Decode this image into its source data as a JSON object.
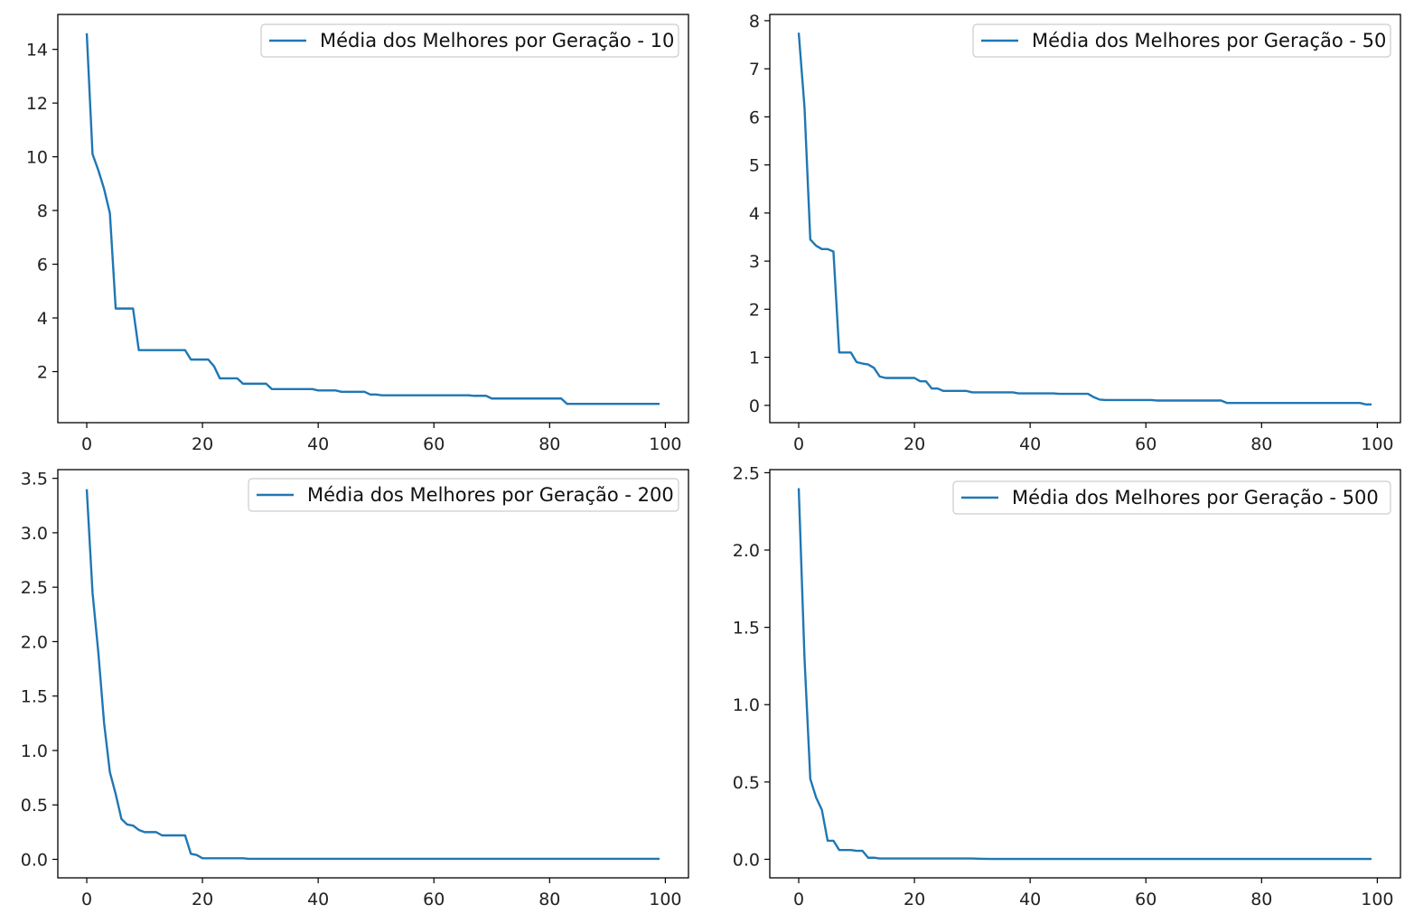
{
  "figure": {
    "line_color": "#1f77b4"
  },
  "chart_data": [
    {
      "type": "line",
      "title": "",
      "xlabel": "",
      "ylabel": "",
      "xlim": [
        -5,
        104
      ],
      "ylim": [
        0.1,
        15.3
      ],
      "xticks": [
        0,
        20,
        40,
        60,
        80,
        100
      ],
      "xtick_labels": [
        "0",
        "20",
        "40",
        "60",
        "80",
        "100"
      ],
      "yticks": [
        2,
        4,
        6,
        8,
        10,
        12,
        14
      ],
      "ytick_labels": [
        "2",
        "4",
        "6",
        "8",
        "10",
        "12",
        "14"
      ],
      "grid": false,
      "legend_position": "top-right",
      "series": [
        {
          "name": "Média dos Melhores por Geração - 10",
          "x": [
            0,
            1,
            2,
            3,
            4,
            5,
            6,
            7,
            8,
            9,
            10,
            11,
            12,
            13,
            14,
            15,
            16,
            17,
            18,
            19,
            20,
            21,
            22,
            23,
            24,
            25,
            26,
            27,
            28,
            29,
            30,
            31,
            32,
            33,
            34,
            35,
            36,
            37,
            38,
            39,
            40,
            41,
            42,
            43,
            44,
            45,
            46,
            47,
            48,
            49,
            50,
            51,
            52,
            53,
            54,
            55,
            56,
            57,
            58,
            59,
            60,
            61,
            62,
            63,
            64,
            65,
            66,
            67,
            68,
            69,
            70,
            71,
            72,
            73,
            74,
            75,
            76,
            77,
            78,
            79,
            80,
            81,
            82,
            83,
            84,
            85,
            86,
            87,
            88,
            89,
            90,
            91,
            92,
            93,
            94,
            95,
            96,
            97,
            98,
            99
          ],
          "y": [
            14.6,
            10.1,
            9.5,
            8.8,
            7.9,
            4.35,
            4.35,
            4.35,
            4.35,
            2.8,
            2.8,
            2.8,
            2.8,
            2.8,
            2.8,
            2.8,
            2.8,
            2.8,
            2.45,
            2.45,
            2.45,
            2.45,
            2.2,
            1.75,
            1.75,
            1.75,
            1.75,
            1.55,
            1.55,
            1.55,
            1.55,
            1.55,
            1.35,
            1.35,
            1.35,
            1.35,
            1.35,
            1.35,
            1.35,
            1.35,
            1.3,
            1.3,
            1.3,
            1.3,
            1.25,
            1.25,
            1.25,
            1.25,
            1.25,
            1.15,
            1.15,
            1.12,
            1.12,
            1.12,
            1.12,
            1.12,
            1.12,
            1.12,
            1.12,
            1.12,
            1.12,
            1.12,
            1.12,
            1.12,
            1.12,
            1.12,
            1.12,
            1.1,
            1.1,
            1.1,
            1.0,
            1.0,
            1.0,
            1.0,
            1.0,
            1.0,
            1.0,
            1.0,
            1.0,
            1.0,
            1.0,
            1.0,
            1.0,
            0.8,
            0.8,
            0.8,
            0.8,
            0.8,
            0.8,
            0.8,
            0.8,
            0.8,
            0.8,
            0.8,
            0.8,
            0.8,
            0.8,
            0.8,
            0.8,
            0.8
          ]
        }
      ]
    },
    {
      "type": "line",
      "title": "",
      "xlabel": "",
      "ylabel": "",
      "xlim": [
        -5,
        104
      ],
      "ylim": [
        -0.36,
        8.13
      ],
      "xticks": [
        0,
        20,
        40,
        60,
        80,
        100
      ],
      "xtick_labels": [
        "0",
        "20",
        "40",
        "60",
        "80",
        "100"
      ],
      "yticks": [
        0,
        1,
        2,
        3,
        4,
        5,
        6,
        7,
        8
      ],
      "ytick_labels": [
        "0",
        "1",
        "2",
        "3",
        "4",
        "5",
        "6",
        "7",
        "8"
      ],
      "grid": false,
      "legend_position": "top-right",
      "series": [
        {
          "name": "Média dos Melhores por Geração - 50",
          "x": [
            0,
            1,
            2,
            3,
            4,
            5,
            6,
            7,
            8,
            9,
            10,
            11,
            12,
            13,
            14,
            15,
            16,
            17,
            18,
            19,
            20,
            21,
            22,
            23,
            24,
            25,
            26,
            27,
            28,
            29,
            30,
            31,
            32,
            33,
            34,
            35,
            36,
            37,
            38,
            39,
            40,
            41,
            42,
            43,
            44,
            45,
            46,
            47,
            48,
            49,
            50,
            51,
            52,
            53,
            54,
            55,
            56,
            57,
            58,
            59,
            60,
            61,
            62,
            63,
            64,
            65,
            66,
            67,
            68,
            69,
            70,
            71,
            72,
            73,
            74,
            75,
            76,
            77,
            78,
            79,
            80,
            81,
            82,
            83,
            84,
            85,
            86,
            87,
            88,
            89,
            90,
            91,
            92,
            93,
            94,
            95,
            96,
            97,
            98,
            99
          ],
          "y": [
            7.75,
            6.2,
            3.45,
            3.32,
            3.25,
            3.25,
            3.2,
            1.1,
            1.1,
            1.1,
            0.9,
            0.87,
            0.85,
            0.78,
            0.6,
            0.57,
            0.57,
            0.57,
            0.57,
            0.57,
            0.57,
            0.5,
            0.5,
            0.35,
            0.35,
            0.3,
            0.3,
            0.3,
            0.3,
            0.3,
            0.27,
            0.27,
            0.27,
            0.27,
            0.27,
            0.27,
            0.27,
            0.27,
            0.25,
            0.25,
            0.25,
            0.25,
            0.25,
            0.25,
            0.25,
            0.24,
            0.24,
            0.24,
            0.24,
            0.24,
            0.24,
            0.17,
            0.12,
            0.11,
            0.11,
            0.11,
            0.11,
            0.11,
            0.11,
            0.11,
            0.11,
            0.11,
            0.1,
            0.1,
            0.1,
            0.1,
            0.1,
            0.1,
            0.1,
            0.1,
            0.1,
            0.1,
            0.1,
            0.1,
            0.05,
            0.05,
            0.05,
            0.05,
            0.05,
            0.05,
            0.05,
            0.05,
            0.05,
            0.05,
            0.05,
            0.05,
            0.05,
            0.05,
            0.05,
            0.05,
            0.05,
            0.05,
            0.05,
            0.05,
            0.05,
            0.05,
            0.05,
            0.05,
            0.02,
            0.02
          ]
        }
      ]
    },
    {
      "type": "line",
      "title": "",
      "xlabel": "",
      "ylabel": "",
      "xlim": [
        -5,
        104
      ],
      "ylim": [
        -0.17,
        3.58
      ],
      "xticks": [
        0,
        20,
        40,
        60,
        80,
        100
      ],
      "xtick_labels": [
        "0",
        "20",
        "40",
        "60",
        "80",
        "100"
      ],
      "yticks": [
        0,
        0.5,
        1,
        1.5,
        2,
        2.5,
        3,
        3.5
      ],
      "ytick_labels": [
        "0.0",
        "0.5",
        "1.0",
        "1.5",
        "2.0",
        "2.5",
        "3.0",
        "3.5"
      ],
      "grid": false,
      "legend_position": "top-right",
      "series": [
        {
          "name": "Média dos Melhores por Geração - 200",
          "x": [
            0,
            1,
            2,
            3,
            4,
            5,
            6,
            7,
            8,
            9,
            10,
            11,
            12,
            13,
            14,
            15,
            16,
            17,
            18,
            19,
            20,
            21,
            22,
            23,
            24,
            25,
            26,
            27,
            28,
            29,
            30,
            31,
            32,
            33,
            34,
            35,
            36,
            37,
            38,
            39,
            40,
            41,
            42,
            43,
            44,
            45,
            46,
            47,
            48,
            49,
            50,
            51,
            52,
            53,
            54,
            55,
            56,
            57,
            58,
            59,
            60,
            61,
            62,
            63,
            64,
            65,
            66,
            67,
            68,
            69,
            70,
            71,
            72,
            73,
            74,
            75,
            76,
            77,
            78,
            79,
            80,
            81,
            82,
            83,
            84,
            85,
            86,
            87,
            88,
            89,
            90,
            91,
            92,
            93,
            94,
            95,
            96,
            97,
            98,
            99
          ],
          "y": [
            3.4,
            2.45,
            1.9,
            1.25,
            0.8,
            0.6,
            0.37,
            0.32,
            0.31,
            0.27,
            0.25,
            0.25,
            0.25,
            0.22,
            0.22,
            0.22,
            0.22,
            0.22,
            0.05,
            0.04,
            0.01,
            0.01,
            0.01,
            0.01,
            0.01,
            0.01,
            0.01,
            0.01,
            0.005,
            0.005,
            0.005,
            0.005,
            0.005,
            0.005,
            0.005,
            0.005,
            0.005,
            0.005,
            0.005,
            0.005,
            0.005,
            0.005,
            0.005,
            0.005,
            0.005,
            0.005,
            0.005,
            0.005,
            0.005,
            0.005,
            0.005,
            0.005,
            0.005,
            0.005,
            0.005,
            0.005,
            0.005,
            0.005,
            0.005,
            0.005,
            0.005,
            0.005,
            0.005,
            0.005,
            0.005,
            0.005,
            0.005,
            0.005,
            0.005,
            0.005,
            0.005,
            0.005,
            0.005,
            0.005,
            0.005,
            0.005,
            0.005,
            0.005,
            0.005,
            0.005,
            0.005,
            0.005,
            0.005,
            0.005,
            0.005,
            0.005,
            0.005,
            0.005,
            0.005,
            0.005,
            0.005,
            0.005,
            0.005,
            0.005,
            0.005,
            0.005,
            0.005,
            0.005,
            0.005,
            0.005
          ]
        }
      ]
    },
    {
      "type": "line",
      "title": "",
      "xlabel": "",
      "ylabel": "",
      "xlim": [
        -5,
        104
      ],
      "ylim": [
        -0.12,
        2.52
      ],
      "xticks": [
        0,
        20,
        40,
        60,
        80,
        100
      ],
      "xtick_labels": [
        "0",
        "20",
        "40",
        "60",
        "80",
        "100"
      ],
      "yticks": [
        0,
        0.5,
        1,
        1.5,
        2,
        2.5
      ],
      "ytick_labels": [
        "0.0",
        "0.5",
        "1.0",
        "1.5",
        "2.0",
        "2.5"
      ],
      "grid": false,
      "legend_position": "top-right",
      "series": [
        {
          "name": "Média dos Melhores por Geração - 500",
          "x": [
            0,
            1,
            2,
            3,
            4,
            5,
            6,
            7,
            8,
            9,
            10,
            11,
            12,
            13,
            14,
            15,
            16,
            17,
            18,
            19,
            20,
            21,
            22,
            23,
            24,
            25,
            26,
            27,
            28,
            29,
            30,
            31,
            32,
            33,
            34,
            35,
            36,
            37,
            38,
            39,
            40,
            41,
            42,
            43,
            44,
            45,
            46,
            47,
            48,
            49,
            50,
            51,
            52,
            53,
            54,
            55,
            56,
            57,
            58,
            59,
            60,
            61,
            62,
            63,
            64,
            65,
            66,
            67,
            68,
            69,
            70,
            71,
            72,
            73,
            74,
            75,
            76,
            77,
            78,
            79,
            80,
            81,
            82,
            83,
            84,
            85,
            86,
            87,
            88,
            89,
            90,
            91,
            92,
            93,
            94,
            95,
            96,
            97,
            98,
            99
          ],
          "y": [
            2.4,
            1.3,
            0.52,
            0.4,
            0.32,
            0.12,
            0.12,
            0.06,
            0.06,
            0.06,
            0.055,
            0.055,
            0.01,
            0.01,
            0.005,
            0.005,
            0.005,
            0.005,
            0.005,
            0.005,
            0.005,
            0.005,
            0.005,
            0.005,
            0.005,
            0.005,
            0.005,
            0.005,
            0.005,
            0.005,
            0.005,
            0.004,
            0.003,
            0.002,
            0.002,
            0.002,
            0.002,
            0.002,
            0.002,
            0.002,
            0.002,
            0.002,
            0.002,
            0.002,
            0.002,
            0.002,
            0.002,
            0.002,
            0.002,
            0.002,
            0.002,
            0.002,
            0.002,
            0.002,
            0.002,
            0.002,
            0.002,
            0.002,
            0.002,
            0.002,
            0.002,
            0.002,
            0.002,
            0.002,
            0.002,
            0.002,
            0.002,
            0.002,
            0.002,
            0.002,
            0.002,
            0.002,
            0.002,
            0.002,
            0.002,
            0.002,
            0.002,
            0.002,
            0.002,
            0.002,
            0.002,
            0.002,
            0.002,
            0.002,
            0.002,
            0.002,
            0.002,
            0.002,
            0.002,
            0.002,
            0.002,
            0.002,
            0.002,
            0.002,
            0.002,
            0.002,
            0.002,
            0.002,
            0.002,
            0.002
          ]
        }
      ]
    }
  ]
}
